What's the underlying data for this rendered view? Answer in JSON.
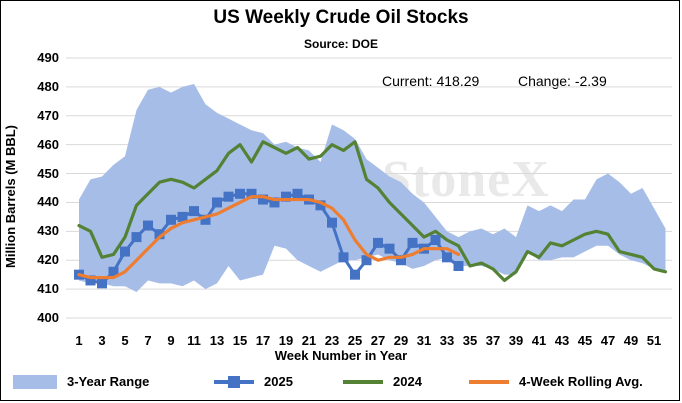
{
  "header": {
    "title": "US Weekly Crude Oil Stocks",
    "subtitle": "Source: DOE",
    "current_text": "Current: 418.29",
    "change_text": "Change: -2.39",
    "watermark": "StoneX"
  },
  "chart_data": {
    "type": "line",
    "title": "US Weekly Crude Oil Stocks",
    "subtitle": "Source: DOE",
    "xlabel": "Week Number in Year",
    "ylabel": "Million Barrels (M BBL)",
    "ylim": [
      400,
      490
    ],
    "y_ticks": [
      "400",
      "410",
      "420",
      "430",
      "440",
      "450",
      "460",
      "470",
      "480",
      "490"
    ],
    "xlim": [
      1,
      52
    ],
    "x_ticks": [
      "1",
      "3",
      "5",
      "7",
      "9",
      "11",
      "13",
      "15",
      "17",
      "19",
      "21",
      "23",
      "25",
      "27",
      "29",
      "31",
      "33",
      "35",
      "37",
      "39",
      "41",
      "43",
      "45",
      "47",
      "49",
      "51"
    ],
    "grid": true,
    "legend_position": "bottom",
    "range_band": {
      "name": "3-Year Range",
      "color": "#a6bde8",
      "high": [
        441,
        448,
        449,
        453,
        456,
        472,
        479,
        480,
        478,
        480,
        481,
        474,
        471,
        469,
        467,
        465,
        464,
        460,
        461,
        459,
        458,
        454,
        467,
        465,
        462,
        455,
        452,
        449,
        447,
        443,
        440,
        435,
        430,
        428,
        430,
        431,
        429,
        431,
        428,
        439,
        437,
        439,
        437,
        441,
        441,
        448,
        450,
        447,
        443,
        445,
        438,
        431
      ],
      "low": [
        413,
        412,
        412,
        411,
        411,
        409,
        413,
        412,
        412,
        411,
        413,
        410,
        412,
        418,
        413,
        414,
        415,
        425,
        424,
        420,
        418,
        416,
        418,
        420,
        420,
        421,
        422,
        420,
        419,
        417,
        418,
        420,
        421,
        418,
        418,
        418,
        417,
        415,
        415,
        423,
        420,
        420,
        421,
        421,
        423,
        425,
        425,
        422,
        420,
        419,
        417,
        416
      ]
    },
    "series": [
      {
        "name": "2025",
        "color": "#4472c4",
        "marker": "square",
        "x": [
          1,
          2,
          3,
          4,
          5,
          6,
          7,
          8,
          9,
          10,
          11,
          12,
          13,
          14,
          15,
          16,
          17,
          18,
          19,
          20,
          21,
          22,
          23,
          24,
          25,
          26,
          27,
          28,
          29,
          30,
          31,
          32,
          33,
          34
        ],
        "values": [
          415,
          413,
          412,
          416,
          423,
          428,
          432,
          429,
          434,
          435,
          437,
          434,
          440,
          442,
          443,
          443,
          441,
          440,
          442,
          443,
          441,
          439,
          433,
          421,
          415,
          420,
          426,
          424,
          420,
          426,
          424,
          427,
          421,
          418
        ]
      },
      {
        "name": "2024",
        "color": "#548235",
        "marker": "none",
        "x": [
          1,
          2,
          3,
          4,
          5,
          6,
          7,
          8,
          9,
          10,
          11,
          12,
          13,
          14,
          15,
          16,
          17,
          18,
          19,
          20,
          21,
          22,
          23,
          24,
          25,
          26,
          27,
          28,
          29,
          30,
          31,
          32,
          33,
          34,
          35,
          36,
          37,
          38,
          39,
          40,
          41,
          42,
          43,
          44,
          45,
          46,
          47,
          48,
          49,
          50,
          51,
          52
        ],
        "values": [
          432,
          430,
          421,
          422,
          428,
          439,
          443,
          447,
          448,
          447,
          445,
          448,
          451,
          457,
          460,
          454,
          461,
          459,
          457,
          459,
          455,
          456,
          460,
          458,
          461,
          448,
          445,
          440,
          436,
          432,
          428,
          430,
          427,
          425,
          418,
          419,
          417,
          413,
          416,
          423,
          421,
          426,
          425,
          427,
          429,
          430,
          429,
          423,
          422,
          421,
          417,
          416
        ]
      },
      {
        "name": "4-Week Rolling Avg.",
        "color": "#ed7d31",
        "marker": "none",
        "x": [
          1,
          2,
          3,
          4,
          5,
          6,
          7,
          8,
          9,
          10,
          11,
          12,
          13,
          14,
          15,
          16,
          17,
          18,
          19,
          20,
          21,
          22,
          23,
          24,
          25,
          26,
          27,
          28,
          29,
          30,
          31,
          32,
          33,
          34
        ],
        "values": [
          415,
          414,
          414,
          414,
          416,
          420,
          424,
          428,
          431,
          433,
          434,
          435,
          436,
          438,
          440,
          442,
          442,
          441,
          441,
          441,
          441,
          440,
          438,
          434,
          427,
          422,
          420,
          421,
          421,
          422,
          424,
          424,
          424,
          422
        ]
      }
    ]
  }
}
